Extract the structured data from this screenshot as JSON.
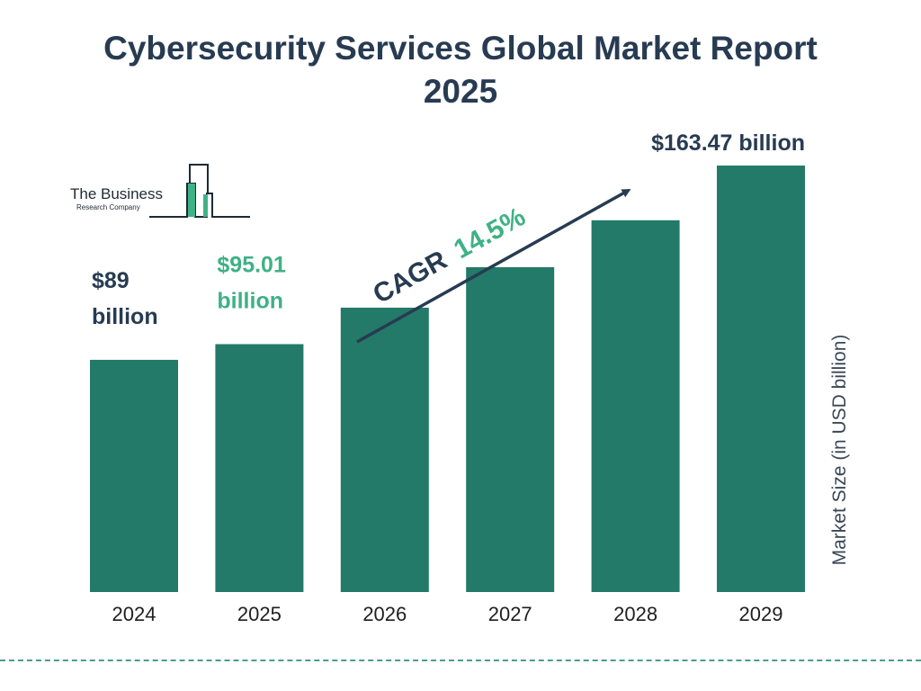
{
  "title_line1": "Cybersecurity Services Global Market Report",
  "title_line2": "2025",
  "logo": {
    "name": "The Business",
    "sub": "Research Company"
  },
  "cagr": {
    "label": "CAGR",
    "value": "14.5%"
  },
  "colors": {
    "bar": "#237a69",
    "title": "#273b52",
    "accent": "#3fb186"
  },
  "chart_data": {
    "type": "bar",
    "title": "Cybersecurity Services Global Market Report 2025",
    "categories": [
      "2024",
      "2025",
      "2026",
      "2027",
      "2028",
      "2029"
    ],
    "values": [
      89,
      95.01,
      109,
      124.5,
      142.5,
      163.47
    ],
    "ylabel": "Market Size (in USD billion)",
    "ylim": [
      0,
      163.47
    ],
    "grid": false,
    "data_labels": [
      {
        "category": "2024",
        "lines": [
          "$89",
          "billion"
        ],
        "color": "dark"
      },
      {
        "category": "2025",
        "lines": [
          "$95.01",
          "billion"
        ],
        "color": "green"
      },
      {
        "category": "2029",
        "lines": [
          "$163.47 billion"
        ],
        "color": "dark"
      }
    ]
  }
}
